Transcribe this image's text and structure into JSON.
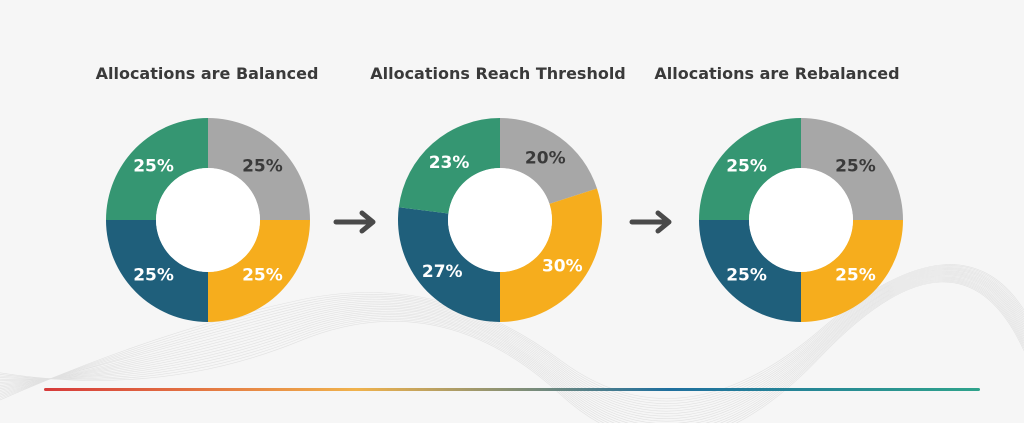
{
  "colors": {
    "gray": "#a7a7a7",
    "yellow": "#f6ad1d",
    "blue": "#1f5f7b",
    "green": "#359672",
    "arrow": "#4a4a4a",
    "bar": [
      "#d63a3a",
      "#f0b24c",
      "#1f6f9e",
      "#2fa38b"
    ]
  },
  "chart_data": [
    {
      "type": "pie",
      "title": "Allocations are Balanced",
      "slices": [
        {
          "value": 25,
          "label": "25%",
          "color": "gray"
        },
        {
          "value": 25,
          "label": "25%",
          "color": "yellow"
        },
        {
          "value": 25,
          "label": "25%",
          "color": "blue"
        },
        {
          "value": 25,
          "label": "25%",
          "color": "green"
        }
      ]
    },
    {
      "type": "pie",
      "title": "Allocations Reach Threshold",
      "slices": [
        {
          "value": 20,
          "label": "20%",
          "color": "gray"
        },
        {
          "value": 30,
          "label": "30%",
          "color": "yellow"
        },
        {
          "value": 27,
          "label": "27%",
          "color": "blue"
        },
        {
          "value": 23,
          "label": "23%",
          "color": "green"
        }
      ]
    },
    {
      "type": "pie",
      "title": "Allocations are Rebalanced",
      "slices": [
        {
          "value": 25,
          "label": "25%",
          "color": "gray"
        },
        {
          "value": 25,
          "label": "25%",
          "color": "yellow"
        },
        {
          "value": 25,
          "label": "25%",
          "color": "blue"
        },
        {
          "value": 25,
          "label": "25%",
          "color": "green"
        }
      ]
    }
  ]
}
